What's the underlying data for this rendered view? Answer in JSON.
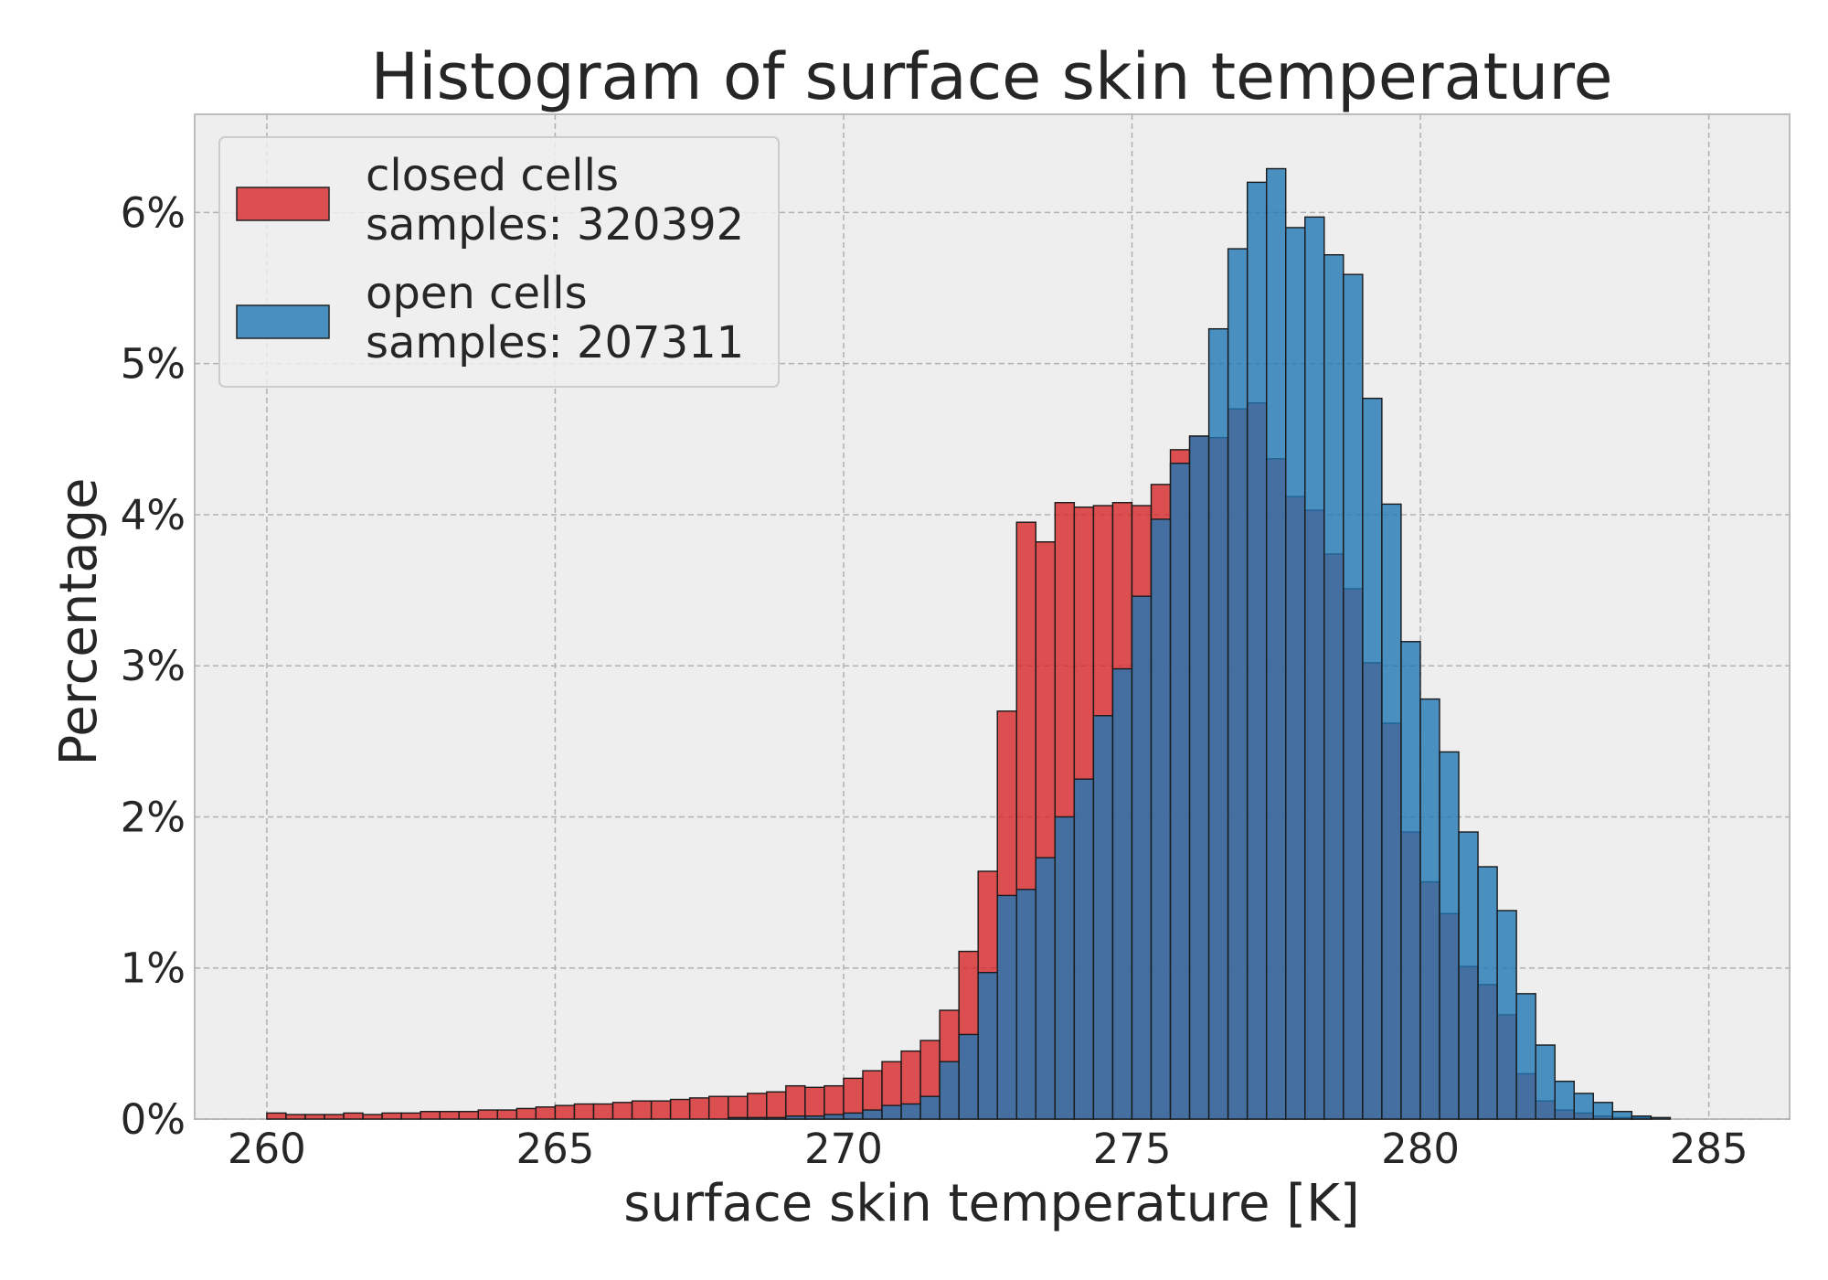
{
  "chart_data": {
    "type": "bar",
    "title": "Histogram of surface skin temperature",
    "xlabel": "surface skin temperature [K]",
    "ylabel": "Percentage",
    "xlim": [
      258.75,
      286.4
    ],
    "ylim": [
      0,
      6.65
    ],
    "xticks": [
      260,
      265,
      270,
      275,
      280,
      285
    ],
    "yticks": [
      0,
      1,
      2,
      3,
      4,
      5,
      6
    ],
    "ytick_suffix": "%",
    "grid": true,
    "legend_position": "top-left",
    "bin_start": 260,
    "bin_width": 0.3333,
    "series": [
      {
        "name": "closed cells",
        "samples_label": "samples: 320392",
        "color": "#d62728",
        "values": [
          0.04,
          0.03,
          0.03,
          0.03,
          0.04,
          0.03,
          0.04,
          0.04,
          0.05,
          0.05,
          0.05,
          0.06,
          0.06,
          0.07,
          0.08,
          0.09,
          0.1,
          0.1,
          0.11,
          0.12,
          0.12,
          0.13,
          0.14,
          0.15,
          0.15,
          0.17,
          0.18,
          0.22,
          0.21,
          0.22,
          0.27,
          0.32,
          0.38,
          0.45,
          0.52,
          0.72,
          1.11,
          1.64,
          2.7,
          3.95,
          3.82,
          4.08,
          4.05,
          4.06,
          4.08,
          4.06,
          4.2,
          4.43,
          4.52,
          4.51,
          4.7,
          4.74,
          4.37,
          4.12,
          4.03,
          3.74,
          3.51,
          3.02,
          2.62,
          1.9,
          1.57,
          1.36,
          1.01,
          0.89,
          0.69,
          0.3,
          0.12,
          0.06,
          0.04,
          0.02,
          0.01,
          0.01,
          0.0,
          0.0,
          0.0,
          0.0
        ]
      },
      {
        "name": "open cells",
        "samples_label": "samples: 207311",
        "color": "#1f77b4",
        "values": [
          0,
          0,
          0,
          0,
          0,
          0,
          0,
          0,
          0,
          0,
          0,
          0,
          0,
          0,
          0,
          0,
          0,
          0,
          0,
          0,
          0,
          0,
          0,
          0,
          0.01,
          0.01,
          0.01,
          0.02,
          0.02,
          0.03,
          0.04,
          0.06,
          0.09,
          0.1,
          0.15,
          0.38,
          0.56,
          0.97,
          1.48,
          1.52,
          1.73,
          2.0,
          2.25,
          2.67,
          2.98,
          3.46,
          3.97,
          4.34,
          4.52,
          5.23,
          5.76,
          6.2,
          6.29,
          5.9,
          5.97,
          5.72,
          5.59,
          4.77,
          4.07,
          3.16,
          2.78,
          2.43,
          1.9,
          1.67,
          1.38,
          0.83,
          0.49,
          0.25,
          0.17,
          0.11,
          0.05,
          0.02,
          0.01,
          0.0,
          0.0,
          0.0
        ]
      }
    ]
  }
}
